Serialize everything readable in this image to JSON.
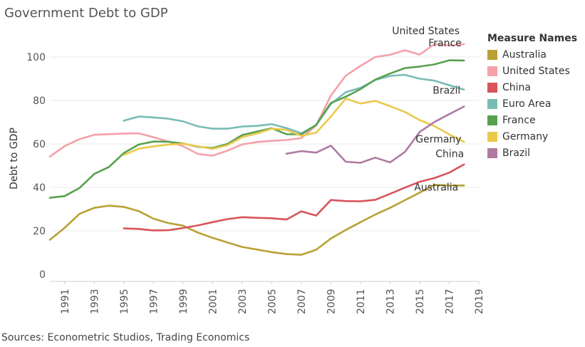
{
  "title": "Government Debt to GDP",
  "source": "Sources: Econometric Studios, Trading Economics",
  "legend": {
    "title": "Measure Names",
    "placement": "right"
  },
  "chart_data": {
    "type": "line",
    "title": "Government Debt to GDP",
    "xlabel": "",
    "ylabel": "Debt to GDP",
    "xlim": [
      1990,
      2019
    ],
    "ylim": [
      0,
      110
    ],
    "x_ticks": [
      1991,
      1993,
      1995,
      1997,
      1999,
      2001,
      2003,
      2005,
      2007,
      2009,
      2011,
      2013,
      2015,
      2017,
      2019
    ],
    "y_ticks": [
      0,
      20,
      40,
      60,
      80,
      100
    ],
    "grid": true,
    "series": [
      {
        "name": "Australia",
        "end_label": "Australia",
        "color": "#b9a134",
        "x": [
          1990,
          1991,
          1992,
          1993,
          1994,
          1995,
          1996,
          1997,
          1998,
          1999,
          2000,
          2001,
          2002,
          2003,
          2004,
          2005,
          2006,
          2007,
          2008,
          2009,
          2010,
          2011,
          2012,
          2013,
          2014,
          2015,
          2016,
          2017,
          2018
        ],
        "values": [
          15.9,
          21.4,
          27.8,
          30.6,
          31.6,
          31.0,
          29.1,
          25.6,
          23.6,
          22.4,
          19.2,
          16.8,
          14.7,
          12.6,
          11.4,
          10.2,
          9.3,
          9.0,
          11.3,
          16.5,
          20.4,
          24.0,
          27.5,
          30.6,
          34.1,
          37.6,
          41.1,
          40.9,
          40.9
        ]
      },
      {
        "name": "United States",
        "end_label": "United States",
        "color": "#f4a1a8",
        "x": [
          1990,
          1991,
          1992,
          1993,
          1994,
          1995,
          1996,
          1997,
          1998,
          1999,
          2000,
          2001,
          2002,
          2003,
          2004,
          2005,
          2006,
          2007,
          2008,
          2009,
          2010,
          2011,
          2012,
          2013,
          2014,
          2015,
          2016,
          2017,
          2018
        ],
        "values": [
          54.2,
          59.0,
          62.2,
          64.2,
          64.5,
          64.8,
          64.9,
          63.1,
          61.1,
          59.0,
          55.4,
          54.6,
          56.9,
          59.8,
          60.9,
          61.4,
          61.8,
          62.7,
          68.5,
          82.3,
          91.4,
          95.9,
          100.0,
          101.0,
          103.1,
          101.1,
          105.9,
          105.3,
          105.9
        ]
      },
      {
        "name": "China",
        "end_label": "China",
        "color": "#d8545a",
        "x": [
          1995,
          1996,
          1997,
          1998,
          1999,
          2000,
          2001,
          2002,
          2003,
          2004,
          2005,
          2006,
          2007,
          2008,
          2009,
          2010,
          2011,
          2012,
          2013,
          2014,
          2015,
          2016,
          2017,
          2018
        ],
        "values": [
          21.1,
          20.9,
          20.2,
          20.3,
          21.3,
          22.5,
          24.0,
          25.4,
          26.3,
          26.0,
          25.8,
          25.2,
          29.0,
          27.0,
          34.2,
          33.7,
          33.6,
          34.3,
          37.0,
          39.9,
          42.6,
          44.3,
          46.8,
          50.6
        ]
      },
      {
        "name": "Euro Area",
        "end_label": "",
        "color": "#79bcb6",
        "x": [
          1995,
          1996,
          1997,
          1998,
          1999,
          2000,
          2001,
          2002,
          2003,
          2004,
          2005,
          2006,
          2007,
          2008,
          2009,
          2010,
          2011,
          2012,
          2013,
          2014,
          2015,
          2016,
          2017,
          2018
        ],
        "values": [
          70.7,
          72.6,
          72.2,
          71.6,
          70.4,
          68.1,
          67.0,
          67.0,
          68.0,
          68.3,
          69.1,
          67.3,
          64.9,
          68.6,
          78.4,
          83.8,
          85.8,
          89.4,
          91.3,
          91.8,
          90.0,
          89.1,
          87.0,
          85.0
        ]
      },
      {
        "name": "France",
        "end_label": "France",
        "color": "#59a14f",
        "x": [
          1990,
          1991,
          1992,
          1993,
          1994,
          1995,
          1996,
          1997,
          1998,
          1999,
          2000,
          2001,
          2002,
          2003,
          2004,
          2005,
          2006,
          2007,
          2008,
          2009,
          2010,
          2011,
          2012,
          2013,
          2014,
          2015,
          2016,
          2017,
          2018
        ],
        "values": [
          35.2,
          36.0,
          39.7,
          46.2,
          49.4,
          55.8,
          59.7,
          61.1,
          61.0,
          60.2,
          58.7,
          58.1,
          60.0,
          64.1,
          65.7,
          67.2,
          64.5,
          64.4,
          68.8,
          78.9,
          81.7,
          85.2,
          89.6,
          92.4,
          94.9,
          95.6,
          96.6,
          98.5,
          98.4
        ]
      },
      {
        "name": "Germany",
        "end_label": "Germany",
        "color": "#ebc94a",
        "x": [
          1995,
          1996,
          1997,
          1998,
          1999,
          2000,
          2001,
          2002,
          2003,
          2004,
          2005,
          2006,
          2007,
          2008,
          2009,
          2010,
          2011,
          2012,
          2013,
          2014,
          2015,
          2016,
          2017,
          2018
        ],
        "values": [
          54.9,
          57.8,
          58.9,
          59.7,
          60.1,
          58.9,
          57.7,
          59.4,
          63.1,
          64.8,
          67.0,
          66.5,
          63.7,
          65.2,
          72.6,
          80.9,
          78.6,
          79.8,
          77.4,
          74.7,
          71.0,
          68.2,
          64.4,
          61.0
        ]
      },
      {
        "name": "Brazil",
        "end_label": "Brazil",
        "color": "#b07aa1",
        "x": [
          2006,
          2007,
          2008,
          2009,
          2010,
          2011,
          2012,
          2013,
          2014,
          2015,
          2016,
          2017,
          2018
        ],
        "values": [
          55.5,
          56.7,
          56.0,
          59.2,
          51.8,
          51.3,
          53.7,
          51.5,
          56.3,
          65.5,
          70.1,
          73.7,
          77.2
        ]
      }
    ]
  }
}
